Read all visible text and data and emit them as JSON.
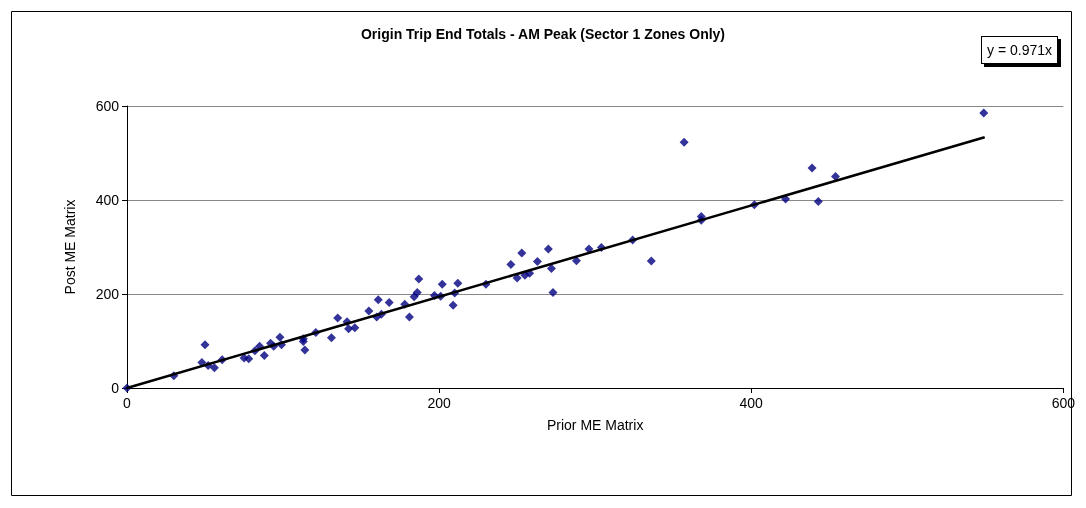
{
  "chart_data": {
    "type": "scatter",
    "title": "Origin Trip End Totals - AM Peak (Sector 1 Zones Only)",
    "xlabel": "Prior ME Matrix",
    "ylabel": "Post ME Matrix",
    "annotations": [
      "y = 0.971x"
    ],
    "series": [
      {
        "type": "scatter",
        "color": "#000080",
        "marker": "diamond",
        "x": [
          0,
          30,
          50,
          48,
          52,
          56,
          61,
          75,
          78,
          82,
          85,
          88,
          92,
          94,
          98,
          99,
          113,
          113,
          114,
          121,
          131,
          135,
          141,
          142,
          146,
          155,
          160,
          161,
          163,
          168,
          178,
          181,
          184,
          186,
          187,
          197,
          201,
          202,
          209,
          210,
          212,
          230,
          246,
          250,
          253,
          255,
          258,
          263,
          270,
          272,
          273,
          288,
          296,
          304,
          324,
          336,
          357,
          368,
          368,
          402,
          422,
          439,
          443,
          454,
          549
        ],
        "values": [
          0,
          26,
          92,
          54,
          48,
          43,
          60,
          64,
          62,
          79,
          89,
          69,
          95,
          89,
          108,
          92,
          99,
          105,
          81,
          118,
          107,
          149,
          141,
          126,
          128,
          164,
          151,
          188,
          157,
          182,
          178,
          151,
          194,
          203,
          232,
          197,
          195,
          221,
          176,
          202,
          223,
          221,
          263,
          234,
          287,
          240,
          244,
          269,
          296,
          254,
          203,
          271,
          296,
          299,
          315,
          270,
          523,
          365,
          357,
          390,
          402,
          468,
          397,
          450,
          585
        ]
      },
      {
        "type": "line",
        "color": "#000000",
        "marker": "none",
        "line_style": "solid",
        "x": [
          0,
          549
        ],
        "values": [
          0,
          533
        ]
      }
    ],
    "xlim": [
      0,
      600
    ],
    "xticks": [
      0,
      200,
      400,
      600
    ],
    "ylim": [
      0,
      600
    ],
    "yticks": [
      0,
      200,
      400,
      600
    ],
    "grid": "y"
  }
}
